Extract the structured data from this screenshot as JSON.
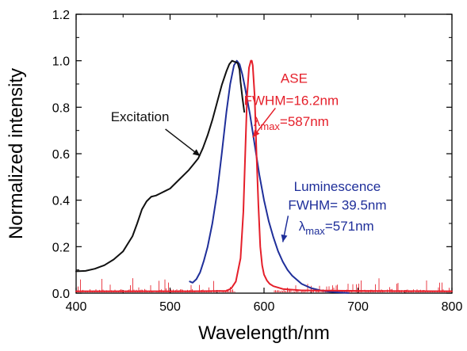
{
  "chart_data": {
    "type": "line",
    "xlabel": "Wavelength/nm",
    "ylabel": "Normalized intensity",
    "xlim": [
      400,
      800
    ],
    "ylim": [
      0,
      1.2
    ],
    "x_ticks": [
      "400",
      "500",
      "600",
      "700",
      "800"
    ],
    "y_ticks": [
      "0.0",
      "0.2",
      "0.4",
      "0.6",
      "0.8",
      "1.0",
      "1.2"
    ],
    "grid": false,
    "legend": "none",
    "series": [
      {
        "label": "Excitation",
        "color": "#111111",
        "x": [
          400,
          410,
          420,
          430,
          440,
          450,
          460,
          465,
          470,
          475,
          480,
          485,
          490,
          495,
          500,
          505,
          510,
          515,
          520,
          525,
          530,
          535,
          540,
          545,
          550,
          555,
          560,
          563,
          566,
          569,
          572,
          574,
          575,
          577,
          579
        ],
        "y": [
          0.094,
          0.096,
          0.105,
          0.12,
          0.145,
          0.18,
          0.245,
          0.3,
          0.36,
          0.395,
          0.415,
          0.42,
          0.43,
          0.44,
          0.45,
          0.47,
          0.49,
          0.51,
          0.53,
          0.555,
          0.58,
          0.625,
          0.68,
          0.745,
          0.82,
          0.895,
          0.955,
          0.985,
          1.0,
          0.995,
          0.99,
          0.96,
          0.91,
          0.84,
          0.78
        ]
      },
      {
        "label": "Luminescence",
        "color": "#1f2f9a",
        "x": [
          521,
          524,
          528,
          532,
          536,
          540,
          545,
          550,
          555,
          560,
          564,
          568,
          571,
          574,
          577,
          580,
          585,
          590,
          595,
          600,
          605,
          610,
          615,
          620,
          625,
          630,
          640,
          650,
          660,
          670,
          680,
          690
        ],
        "y": [
          0.05,
          0.045,
          0.06,
          0.09,
          0.14,
          0.2,
          0.3,
          0.43,
          0.6,
          0.78,
          0.9,
          0.98,
          1.0,
          0.985,
          0.94,
          0.88,
          0.77,
          0.64,
          0.51,
          0.4,
          0.31,
          0.24,
          0.18,
          0.135,
          0.1,
          0.075,
          0.04,
          0.022,
          0.012,
          0.006,
          0.003,
          0.001
        ]
      },
      {
        "label": "ASE",
        "color": "#e51f2a",
        "x": [
          400,
          520,
          560,
          565,
          570,
          575,
          578,
          580,
          582,
          584,
          586,
          587,
          588,
          590,
          592,
          594,
          596,
          598,
          600,
          603,
          606,
          610,
          620,
          640,
          700,
          800
        ],
        "y": [
          0.008,
          0.008,
          0.01,
          0.02,
          0.05,
          0.15,
          0.35,
          0.6,
          0.85,
          0.97,
          1.0,
          1.0,
          0.98,
          0.85,
          0.6,
          0.38,
          0.2,
          0.12,
          0.08,
          0.055,
          0.04,
          0.03,
          0.018,
          0.012,
          0.01,
          0.008
        ]
      }
    ],
    "annotations": [
      {
        "text": "Excitation",
        "color": "#111111",
        "x": 468,
        "y": 0.74,
        "arrow_to": [
          532,
          0.59
        ]
      },
      {
        "text": "ASE",
        "color": "#e51f2a",
        "x": 632,
        "y": 0.905
      },
      {
        "text": "FWHM=16.2nm",
        "color": "#e51f2a",
        "x": 629,
        "y": 0.81,
        "arrow_to": [
          588,
          0.67
        ]
      },
      {
        "text": "λmax=587nm",
        "color": "#e51f2a",
        "x": 629,
        "y": 0.72
      },
      {
        "text": "Luminescence",
        "color": "#1f2f9a",
        "x": 678,
        "y": 0.44
      },
      {
        "text": "FWHM= 39.5nm",
        "color": "#1f2f9a",
        "x": 678,
        "y": 0.36,
        "arrow_to": [
          620,
          0.22
        ]
      },
      {
        "text": "λmax=571nm",
        "color": "#1f2f9a",
        "x": 677,
        "y": 0.27
      }
    ]
  }
}
